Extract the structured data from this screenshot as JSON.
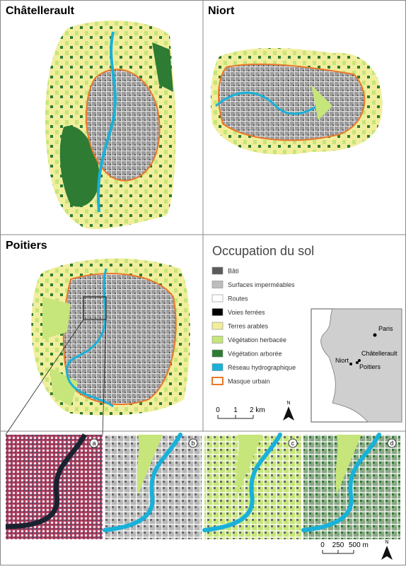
{
  "maps": [
    {
      "title": "Châtellerault"
    },
    {
      "title": "Niort"
    },
    {
      "title": "Poitiers"
    }
  ],
  "legend": {
    "title": "Occupation du sol",
    "items": [
      {
        "label": "Bâti",
        "color": "#5b5b5b"
      },
      {
        "label": "Surfaces imperméables",
        "color": "#bdbdbd"
      },
      {
        "label": "Routes",
        "color": "#ffffff"
      },
      {
        "label": "Voies ferrées",
        "color": "#000000"
      },
      {
        "label": "Terres arables",
        "color": "#f1ee9c"
      },
      {
        "label": "Végétation herbacée",
        "color": "#c6e57a"
      },
      {
        "label": "Végétation arborée",
        "color": "#2e7b34"
      },
      {
        "label": "Réseau hydrographique",
        "color": "#19b1d9"
      },
      {
        "label": "Masque urbain",
        "color": "#e8782a",
        "outline": true
      }
    ]
  },
  "inset": {
    "cities": [
      "Paris",
      "Châtellerault",
      "Niort",
      "Poitiers"
    ]
  },
  "scale_bar": {
    "labels": [
      "0",
      "1",
      "2 km"
    ],
    "north": "N"
  },
  "thumbnails": {
    "labels": [
      "a",
      "b",
      "c",
      "d"
    ],
    "scale_labels": [
      "0",
      "250",
      "500 m"
    ],
    "north": "N"
  }
}
